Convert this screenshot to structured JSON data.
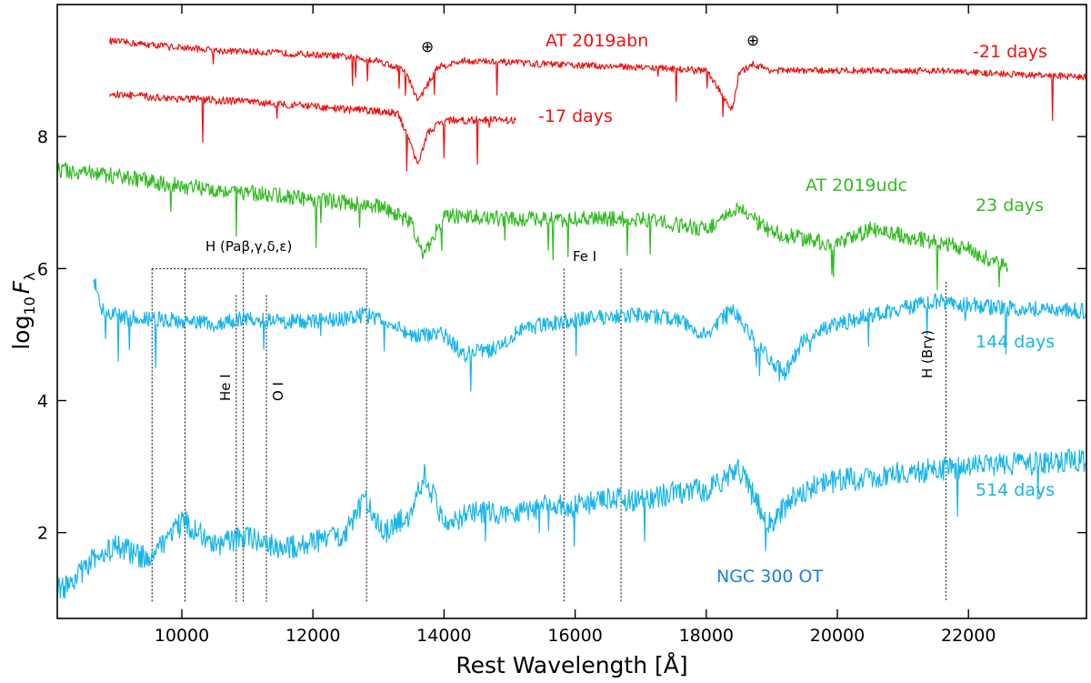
{
  "chart_data": {
    "type": "line",
    "xlabel": "Rest Wavelength [Å]",
    "ylabel": "log10 Fλ",
    "ylabel_main": "log",
    "ylabel_sub": "10",
    "ylabel_var": "F",
    "ylabel_var_sub": "λ",
    "xlim": [
      8100,
      23800
    ],
    "ylim": [
      0.7,
      10.0
    ],
    "x_ticks": [
      10000,
      12000,
      14000,
      16000,
      18000,
      20000,
      22000
    ],
    "y_ticks": [
      2,
      4,
      6,
      8
    ],
    "colors": {
      "abn": "#ee1111",
      "udc": "#33bb22",
      "ngc": "#18b4ea",
      "ngc_label": "#1a7fe0"
    },
    "labels": {
      "at2019abn": "AT 2019abn",
      "at2019udc": "AT 2019udc",
      "ngc300": "NGC 300 OT",
      "m21": "-21 days",
      "m17": "-17 days",
      "d23": "23 days",
      "d144": "144 days",
      "d514": "514 days"
    },
    "annotations": {
      "telluric": "⊕",
      "hydrogen_paschen": "H (Paβ,γ,δ,ε)",
      "fe": "Fe I",
      "he": "He I",
      "o": "O I",
      "brgamma": "H (Brγ)"
    },
    "marker_lines": {
      "paschen": [
        9546,
        10049,
        10938,
        12818
      ],
      "he": [
        10830
      ],
      "o": [
        11290
      ],
      "fe": [
        15830,
        16700
      ],
      "brgamma": [
        21655
      ]
    },
    "series": [
      {
        "name": "AT 2019abn -21 days",
        "color": "#ee1111",
        "x": [
          8900,
          9400,
          10000,
          10600,
          11200,
          11800,
          12400,
          13000,
          13400,
          13600,
          13700,
          13900,
          14300,
          15000,
          16000,
          17000,
          18000,
          18400,
          18500,
          18700,
          19000,
          19500,
          20500,
          21500,
          22500,
          23800
        ],
        "y": [
          9.45,
          9.4,
          9.35,
          9.3,
          9.28,
          9.25,
          9.22,
          9.15,
          9.0,
          8.55,
          8.7,
          9.05,
          9.15,
          9.12,
          9.08,
          9.05,
          9.0,
          8.4,
          8.95,
          9.1,
          9.0,
          9.0,
          9.0,
          9.0,
          8.95,
          8.9
        ]
      },
      {
        "name": "AT 2019abn -17 days",
        "color": "#ee1111",
        "x": [
          8900,
          9500,
          10500,
          11500,
          12300,
          12800,
          13300,
          13600,
          13750,
          14000,
          14400,
          15100
        ],
        "y": [
          8.65,
          8.6,
          8.55,
          8.5,
          8.42,
          8.4,
          8.35,
          7.6,
          8.05,
          8.25,
          8.25,
          8.25
        ]
      },
      {
        "name": "AT 2019udc 23 days",
        "color": "#33bb22",
        "x": [
          8100,
          9000,
          10000,
          11000,
          12000,
          13000,
          13500,
          13700,
          14000,
          15000,
          16000,
          17000,
          18000,
          18500,
          19000,
          20000,
          20500,
          21000,
          21500,
          22000,
          22600
        ],
        "y": [
          7.5,
          7.4,
          7.25,
          7.15,
          7.05,
          6.95,
          6.7,
          6.2,
          6.8,
          6.75,
          6.75,
          6.75,
          6.6,
          6.9,
          6.55,
          6.35,
          6.6,
          6.5,
          6.4,
          6.3,
          6.0
        ]
      },
      {
        "name": "NGC 300 OT 144 days",
        "color": "#18b4ea",
        "x": [
          8650,
          8800,
          9200,
          9600,
          10000,
          10500,
          11000,
          11500,
          12000,
          12500,
          12800,
          13100,
          13400,
          13500,
          13600,
          14000,
          14300,
          14800,
          15200,
          15800,
          16300,
          16800,
          17500,
          18000,
          18400,
          18800,
          19200,
          19500,
          20000,
          20500,
          21000,
          21500,
          22000,
          22500,
          23000,
          23800
        ],
        "y": [
          5.85,
          5.35,
          5.25,
          5.25,
          5.2,
          5.15,
          5.25,
          5.2,
          5.2,
          5.25,
          5.3,
          5.2,
          5.05,
          5.0,
          5.0,
          5.0,
          4.7,
          4.8,
          5.1,
          5.2,
          5.25,
          5.3,
          5.25,
          5.0,
          5.4,
          4.8,
          4.4,
          4.95,
          5.15,
          5.3,
          5.4,
          5.5,
          5.45,
          5.4,
          5.4,
          5.35
        ]
      },
      {
        "name": "NGC 300 OT 514 days",
        "color": "#18b4ea",
        "x": [
          8100,
          8300,
          8600,
          9000,
          9500,
          10000,
          10500,
          11000,
          11500,
          12000,
          12500,
          12800,
          13100,
          13500,
          13700,
          14000,
          14500,
          15000,
          15500,
          16000,
          16500,
          17000,
          17500,
          18000,
          18500,
          18800,
          19000,
          19300,
          19800,
          20500,
          21000,
          21500,
          22000,
          22500,
          23000,
          23800
        ],
        "y": [
          1.15,
          1.2,
          1.55,
          1.8,
          1.6,
          2.2,
          1.8,
          1.95,
          1.75,
          1.85,
          2.0,
          2.5,
          2.0,
          2.3,
          2.9,
          2.15,
          2.3,
          2.3,
          2.4,
          2.4,
          2.5,
          2.5,
          2.6,
          2.65,
          2.95,
          2.4,
          2.1,
          2.55,
          2.75,
          2.85,
          2.9,
          2.95,
          3.0,
          3.05,
          3.05,
          3.1
        ]
      }
    ]
  }
}
